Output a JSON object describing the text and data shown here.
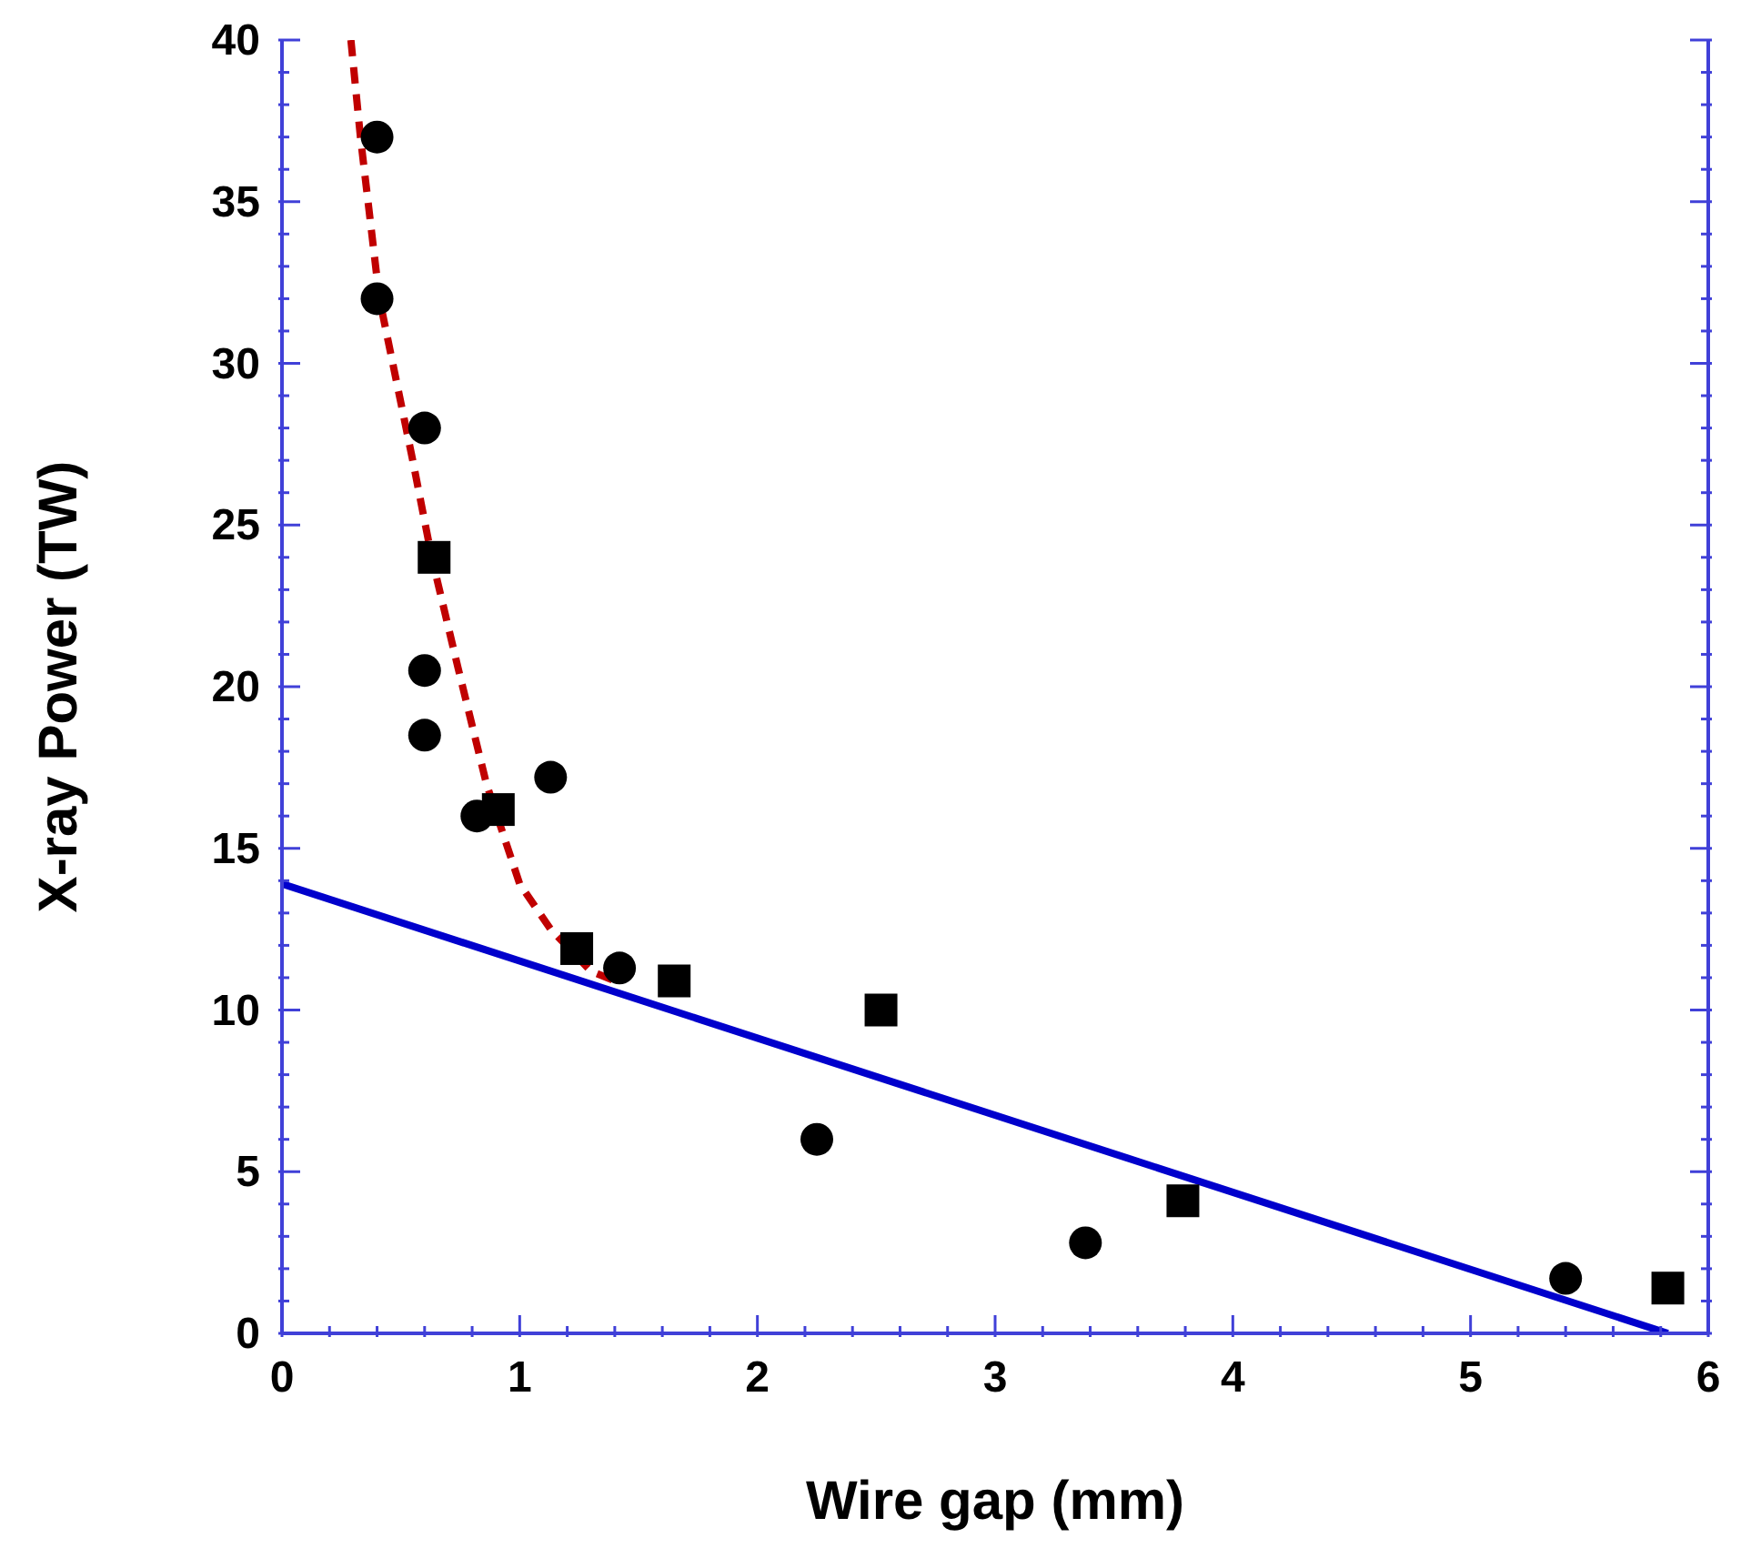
{
  "chart_data": {
    "type": "scatter",
    "xlabel": "Wire gap (mm)",
    "ylabel": "X-ray Power (TW)",
    "xlim": [
      0,
      6
    ],
    "ylim": [
      0,
      40
    ],
    "xticks": [
      0,
      {
        "value": 0.2,
        "label": null
      },
      {
        "value": 0.4,
        "label": null
      },
      {
        "value": 0.6,
        "label": null
      },
      {
        "value": 0.8,
        "label": null
      },
      1,
      {
        "value": 1.2,
        "label": null
      },
      {
        "value": 1.4,
        "label": null
      },
      {
        "value": 1.6,
        "label": null
      },
      {
        "value": 1.8,
        "label": null
      },
      2,
      {
        "value": 2.2,
        "label": null
      },
      {
        "value": 2.4,
        "label": null
      },
      {
        "value": 2.6,
        "label": null
      },
      {
        "value": 2.8,
        "label": null
      },
      3,
      {
        "value": 3.2,
        "label": null
      },
      {
        "value": 3.4,
        "label": null
      },
      {
        "value": 3.6,
        "label": null
      },
      {
        "value": 3.8,
        "label": null
      },
      4,
      {
        "value": 4.2,
        "label": null
      },
      {
        "value": 4.4,
        "label": null
      },
      {
        "value": 4.6,
        "label": null
      },
      {
        "value": 4.8,
        "label": null
      },
      5,
      {
        "value": 5.2,
        "label": null
      },
      {
        "value": 5.4,
        "label": null
      },
      {
        "value": 5.6,
        "label": null
      },
      {
        "value": 5.8,
        "label": null
      },
      6
    ],
    "yticks": [
      0,
      {
        "value": 1,
        "label": null
      },
      {
        "value": 2,
        "label": null
      },
      {
        "value": 3,
        "label": null
      },
      {
        "value": 4,
        "label": null
      },
      5,
      {
        "value": 6,
        "label": null
      },
      {
        "value": 7,
        "label": null
      },
      {
        "value": 8,
        "label": null
      },
      {
        "value": 9,
        "label": null
      },
      10,
      {
        "value": 11,
        "label": null
      },
      {
        "value": 12,
        "label": null
      },
      {
        "value": 13,
        "label": null
      },
      {
        "value": 14,
        "label": null
      },
      15,
      {
        "value": 16,
        "label": null
      },
      {
        "value": 17,
        "label": null
      },
      {
        "value": 18,
        "label": null
      },
      {
        "value": 19,
        "label": null
      },
      20,
      {
        "value": 21,
        "label": null
      },
      {
        "value": 22,
        "label": null
      },
      {
        "value": 23,
        "label": null
      },
      {
        "value": 24,
        "label": null
      },
      25,
      {
        "value": 26,
        "label": null
      },
      {
        "value": 27,
        "label": null
      },
      {
        "value": 28,
        "label": null
      },
      {
        "value": 29,
        "label": null
      },
      30,
      {
        "value": 31,
        "label": null
      },
      {
        "value": 32,
        "label": null
      },
      {
        "value": 33,
        "label": null
      },
      {
        "value": 34,
        "label": null
      },
      35,
      {
        "value": 36,
        "label": null
      },
      {
        "value": 37,
        "label": null
      },
      {
        "value": 38,
        "label": null
      },
      {
        "value": 39,
        "label": null
      },
      40
    ],
    "series": [
      {
        "type": "line",
        "color": "#c00000",
        "line_style": "dashed",
        "x": [
          0.29,
          0.33,
          0.41,
          0.55,
          0.63,
          0.74,
          0.86,
          1.0,
          1.13,
          1.3,
          1.4
        ],
        "values": [
          40,
          37,
          32,
          27,
          24,
          20.6,
          17,
          13.9,
          12.5,
          11.2,
          10.9
        ]
      },
      {
        "type": "line",
        "color": "#0000cc",
        "line_style": "solid",
        "x": [
          0,
          5.83
        ],
        "values": [
          13.9,
          0
        ]
      },
      {
        "color": "#000000",
        "marker": "circle",
        "x": [
          0.4,
          0.4,
          0.6,
          0.6,
          0.6,
          0.82,
          1.13,
          1.42,
          2.25,
          3.38,
          5.4
        ],
        "values": [
          37,
          32,
          28,
          20.5,
          18.5,
          16,
          17.2,
          11.3,
          6,
          2.8,
          1.7
        ]
      },
      {
        "color": "#000000",
        "marker": "square",
        "x": [
          0.64,
          0.91,
          1.24,
          1.65,
          2.52,
          3.79,
          5.83
        ],
        "values": [
          24,
          16.2,
          11.9,
          10.9,
          10,
          4.1,
          1.4
        ]
      }
    ]
  }
}
